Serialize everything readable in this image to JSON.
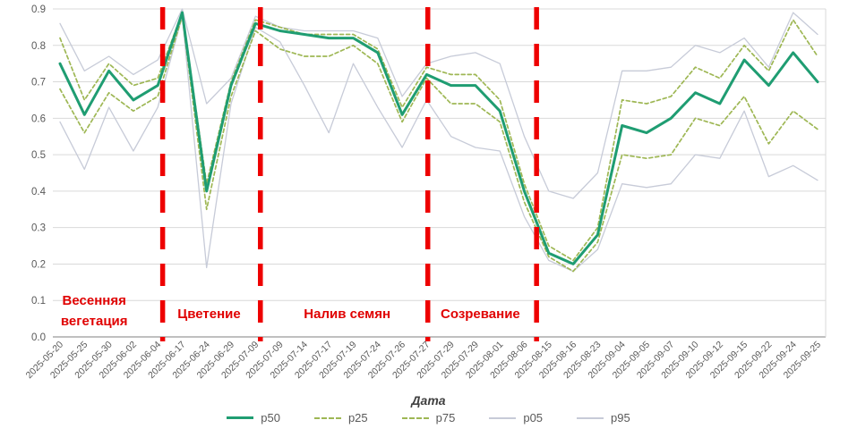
{
  "chart_data": {
    "type": "line",
    "title": "",
    "xlabel": "Дата",
    "ylabel": "",
    "ylim": [
      0.0,
      0.9
    ],
    "y_ticks": [
      "0.0",
      "0.1",
      "0.2",
      "0.3",
      "0.4",
      "0.5",
      "0.6",
      "0.7",
      "0.8",
      "0.9"
    ],
    "grid": "horizontal",
    "legend_position": "bottom",
    "categories": [
      "2025-05-20",
      "2025-05-25",
      "2025-05-30",
      "2025-06-02",
      "2025-06-04",
      "2025-06-17",
      "2025-06-24",
      "2025-06-29",
      "2025-07-09",
      "2025-07-09",
      "2025-07-14",
      "2025-07-17",
      "2025-07-19",
      "2025-07-24",
      "2025-07-26",
      "2025-07-27",
      "2025-07-29",
      "2025-07-29",
      "2025-08-01",
      "2025-08-06",
      "2025-08-15",
      "2025-08-16",
      "2025-08-23",
      "2025-09-04",
      "2025-09-05",
      "2025-09-07",
      "2025-09-10",
      "2025-09-12",
      "2025-09-15",
      "2025-09-22",
      "2025-09-24",
      "2025-09-25"
    ],
    "series": [
      {
        "name": "p05",
        "color": "#c7cbd8",
        "style": "solid",
        "width": 1.3,
        "values": [
          0.59,
          0.46,
          0.63,
          0.51,
          0.63,
          0.88,
          0.19,
          0.64,
          0.85,
          0.81,
          0.69,
          0.56,
          0.75,
          0.63,
          0.52,
          0.65,
          0.55,
          0.52,
          0.51,
          0.33,
          0.21,
          0.18,
          0.24,
          0.42,
          0.41,
          0.42,
          0.5,
          0.49,
          0.62,
          0.44,
          0.47,
          0.43
        ]
      },
      {
        "name": "p95",
        "color": "#c7cbd8",
        "style": "solid",
        "width": 1.3,
        "values": [
          0.86,
          0.73,
          0.77,
          0.72,
          0.76,
          0.9,
          0.64,
          0.71,
          0.88,
          0.85,
          0.84,
          0.84,
          0.84,
          0.82,
          0.66,
          0.75,
          0.77,
          0.78,
          0.75,
          0.55,
          0.4,
          0.38,
          0.45,
          0.73,
          0.73,
          0.74,
          0.8,
          0.78,
          0.82,
          0.74,
          0.89,
          0.83
        ]
      },
      {
        "name": "p25",
        "color": "#9eb754",
        "style": "dashed",
        "width": 1.7,
        "values": [
          0.68,
          0.56,
          0.67,
          0.62,
          0.66,
          0.88,
          0.35,
          0.66,
          0.84,
          0.79,
          0.77,
          0.77,
          0.8,
          0.75,
          0.59,
          0.71,
          0.64,
          0.64,
          0.59,
          0.37,
          0.22,
          0.18,
          0.26,
          0.5,
          0.49,
          0.5,
          0.6,
          0.58,
          0.66,
          0.53,
          0.62,
          0.57
        ]
      },
      {
        "name": "p75",
        "color": "#9eb754",
        "style": "dashed",
        "width": 1.7,
        "values": [
          0.82,
          0.65,
          0.75,
          0.69,
          0.71,
          0.89,
          0.42,
          0.7,
          0.87,
          0.85,
          0.83,
          0.83,
          0.83,
          0.79,
          0.63,
          0.74,
          0.72,
          0.72,
          0.65,
          0.42,
          0.25,
          0.21,
          0.3,
          0.65,
          0.64,
          0.66,
          0.74,
          0.71,
          0.8,
          0.73,
          0.87,
          0.77
        ]
      },
      {
        "name": "p50",
        "color": "#1f9d72",
        "style": "solid",
        "width": 3,
        "values": [
          0.75,
          0.61,
          0.73,
          0.65,
          0.69,
          0.89,
          0.4,
          0.69,
          0.86,
          0.84,
          0.83,
          0.82,
          0.82,
          0.78,
          0.61,
          0.72,
          0.69,
          0.69,
          0.62,
          0.4,
          0.23,
          0.2,
          0.28,
          0.58,
          0.56,
          0.6,
          0.67,
          0.64,
          0.76,
          0.69,
          0.78,
          0.7
        ]
      }
    ],
    "phase_markers": {
      "color": "#ee0000",
      "boundaries_index": [
        4.2,
        8.2,
        15.05,
        19.5
      ],
      "phases": [
        {
          "label": "Весенняя вегетация",
          "lines": [
            "Весенняя",
            "вегетация"
          ],
          "center_index": 1.4
        },
        {
          "label": "Цветение",
          "lines": [
            "Цветение"
          ],
          "center_index": 6.1
        },
        {
          "label": "Налив семян",
          "lines": [
            "Налив семян"
          ],
          "center_index": 11.75
        },
        {
          "label": "Созревание",
          "lines": [
            "Созревание"
          ],
          "center_index": 17.2
        }
      ]
    },
    "colors": {
      "gridline": "#d9d9d9",
      "axis_line": "#808080",
      "tick_label": "#595959",
      "phase_label": "#e00000"
    }
  },
  "legend": {
    "items": [
      {
        "label": "p50"
      },
      {
        "label": "p25"
      },
      {
        "label": "p75"
      },
      {
        "label": "p05"
      },
      {
        "label": "p95"
      }
    ]
  }
}
